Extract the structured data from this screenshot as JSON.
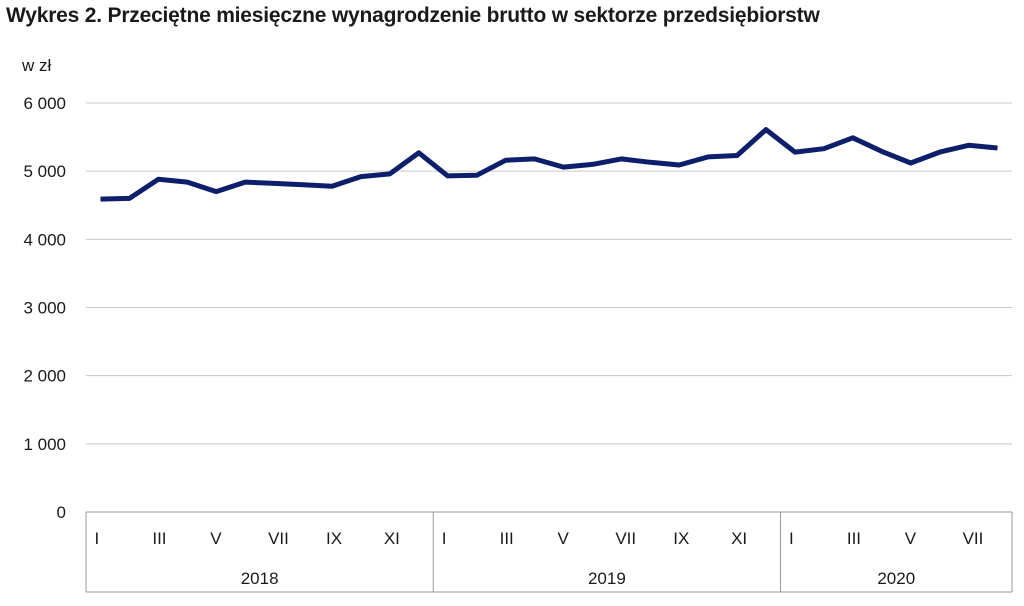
{
  "chart_data": {
    "type": "line",
    "title": "Wykres 2. Przeciętne miesięczne wynagrodzenie brutto w sektorze przedsiębiorstw",
    "ylabel": "w zł",
    "ylim": [
      0,
      6000
    ],
    "yticks": [
      0,
      1000,
      2000,
      3000,
      4000,
      5000,
      6000
    ],
    "ytick_labels": [
      "0",
      "1 000",
      "2 000",
      "3 000",
      "4 000",
      "5 000",
      "6 000"
    ],
    "grid": true,
    "legend": "none",
    "line_color": "#0d1f6b",
    "x_month_labels": [
      "I",
      "III",
      "V",
      "VII",
      "IX",
      "XI",
      "I",
      "III",
      "V",
      "VII",
      "IX",
      "XI",
      "I",
      "III",
      "V",
      "VII"
    ],
    "years": [
      "2018",
      "2019",
      "2020"
    ],
    "series": [
      {
        "values": [
          4590,
          4600,
          4880,
          4840,
          4700,
          4840,
          4820,
          4800,
          4780,
          4920,
          4960,
          5270,
          4930,
          4940,
          5160,
          5180,
          5060,
          5100,
          5180,
          5130,
          5090,
          5210,
          5230,
          5610,
          5280,
          5330,
          5490,
          5290,
          5120,
          5280,
          5380,
          5340
        ]
      }
    ]
  }
}
